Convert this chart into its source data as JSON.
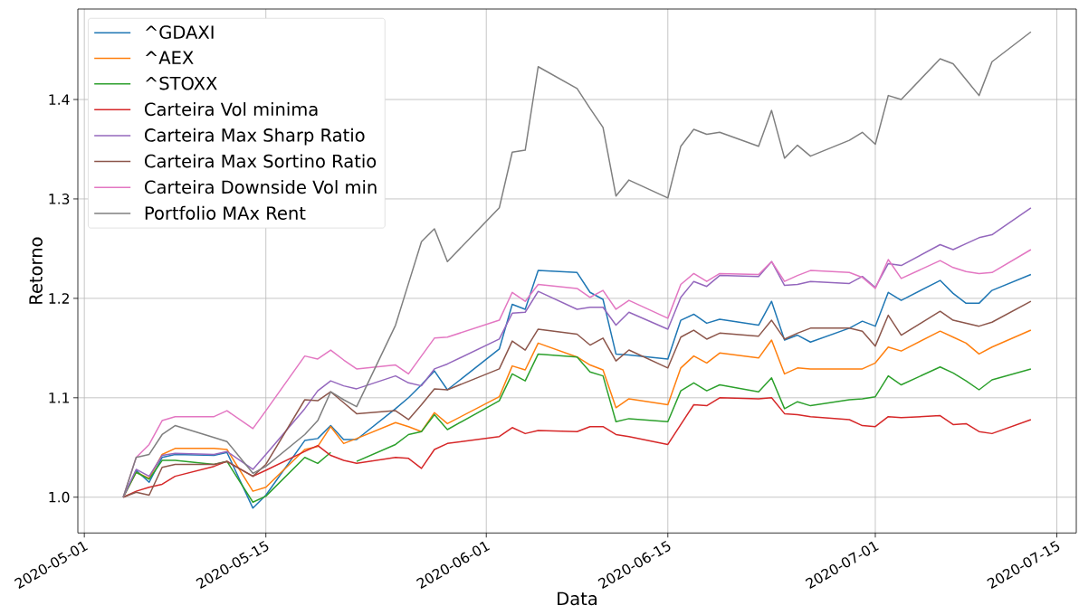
{
  "chart_data": {
    "type": "line",
    "xlabel": "Data",
    "ylabel": "Retorno",
    "x": [
      "2020-05-04",
      "2020-05-05",
      "2020-05-06",
      "2020-05-07",
      "2020-05-08",
      "2020-05-11",
      "2020-05-12",
      "2020-05-14",
      "2020-05-15",
      "2020-05-18",
      "2020-05-19",
      "2020-05-20",
      "2020-05-21",
      "2020-05-22",
      "2020-05-25",
      "2020-05-26",
      "2020-05-27",
      "2020-05-28",
      "2020-05-29",
      "2020-06-02",
      "2020-06-03",
      "2020-06-04",
      "2020-06-05",
      "2020-06-08",
      "2020-06-09",
      "2020-06-10",
      "2020-06-11",
      "2020-06-12",
      "2020-06-15",
      "2020-06-16",
      "2020-06-17",
      "2020-06-18",
      "2020-06-19",
      "2020-06-22",
      "2020-06-23",
      "2020-06-24",
      "2020-06-25",
      "2020-06-26",
      "2020-06-29",
      "2020-06-30",
      "2020-07-01",
      "2020-07-02",
      "2020-07-03",
      "2020-07-06",
      "2020-07-07",
      "2020-07-08",
      "2020-07-09",
      "2020-07-10",
      "2020-07-13"
    ],
    "series": [
      {
        "name": "^GDAXI",
        "color": "#1f77b4",
        "values": [
          1.0,
          1.027,
          1.015,
          1.04,
          1.043,
          1.042,
          1.045,
          0.989,
          1.002,
          1.057,
          1.059,
          1.072,
          1.058,
          1.058,
          1.089,
          1.1,
          1.113,
          1.127,
          1.108,
          1.149,
          1.194,
          1.189,
          1.228,
          1.226,
          1.206,
          1.199,
          1.144,
          1.143,
          1.139,
          1.178,
          1.184,
          1.175,
          1.179,
          1.173,
          1.197,
          1.158,
          1.163,
          1.156,
          1.17,
          1.177,
          1.172,
          1.206,
          1.198,
          1.218,
          1.205,
          1.195,
          1.195,
          1.208,
          1.224
        ]
      },
      {
        "name": "^AEX",
        "color": "#ff7f0e",
        "values": [
          1.0,
          1.025,
          1.019,
          1.043,
          1.049,
          1.049,
          1.048,
          1.006,
          1.01,
          1.048,
          1.051,
          1.071,
          1.054,
          1.059,
          1.075,
          1.071,
          1.066,
          1.085,
          1.074,
          1.101,
          1.132,
          1.128,
          1.155,
          1.141,
          1.133,
          1.128,
          1.09,
          1.099,
          1.093,
          1.13,
          1.142,
          1.135,
          1.145,
          1.14,
          1.158,
          1.124,
          1.13,
          1.129,
          1.129,
          1.129,
          1.135,
          1.151,
          1.147,
          1.167,
          1.161,
          1.155,
          1.144,
          1.151,
          1.168
        ]
      },
      {
        "name": "^STOXX",
        "color": "#2ca02c",
        "values": [
          1.0,
          1.025,
          1.018,
          1.037,
          1.037,
          1.033,
          1.036,
          0.995,
          1.001,
          1.04,
          1.034,
          1.045,
          null,
          1.036,
          1.053,
          1.063,
          1.066,
          1.083,
          1.068,
          1.097,
          1.124,
          1.117,
          1.144,
          1.141,
          1.126,
          1.122,
          1.076,
          1.079,
          1.076,
          1.107,
          1.115,
          1.107,
          1.113,
          1.106,
          1.12,
          1.089,
          1.096,
          1.092,
          1.098,
          1.099,
          1.101,
          1.122,
          1.113,
          1.131,
          1.125,
          1.117,
          1.108,
          1.118,
          1.129
        ]
      },
      {
        "name": "Carteira Vol minima",
        "color": "#d62728",
        "values": [
          1.0,
          1.006,
          1.01,
          1.013,
          1.021,
          1.031,
          1.036,
          1.021,
          1.027,
          1.046,
          1.052,
          1.042,
          1.037,
          1.034,
          1.04,
          1.039,
          1.029,
          1.048,
          1.054,
          1.061,
          1.07,
          1.064,
          1.067,
          1.066,
          1.071,
          1.071,
          1.063,
          1.061,
          1.053,
          1.073,
          1.093,
          1.092,
          1.1,
          1.099,
          1.1,
          1.084,
          1.083,
          1.081,
          1.078,
          1.072,
          1.071,
          1.081,
          1.08,
          1.082,
          1.073,
          1.074,
          1.066,
          1.064,
          1.078
        ]
      },
      {
        "name": "Carteira Max Sharp Ratio",
        "color": "#9467bd",
        "values": [
          1.0,
          1.028,
          1.021,
          1.042,
          1.044,
          1.043,
          1.046,
          1.028,
          1.043,
          1.089,
          1.107,
          1.117,
          1.112,
          1.109,
          1.122,
          1.115,
          1.112,
          1.129,
          1.134,
          1.159,
          1.185,
          1.186,
          1.207,
          1.189,
          1.191,
          1.191,
          1.173,
          1.186,
          1.169,
          1.201,
          1.217,
          1.212,
          1.223,
          1.222,
          1.237,
          1.213,
          1.214,
          1.217,
          1.215,
          1.222,
          1.211,
          1.235,
          1.233,
          1.254,
          1.249,
          1.255,
          1.261,
          1.264,
          1.291
        ]
      },
      {
        "name": "Carteira Max Sortino Ratio",
        "color": "#8c564b",
        "values": [
          1.0,
          1.005,
          1.002,
          1.03,
          1.033,
          1.033,
          1.036,
          1.021,
          1.033,
          1.098,
          1.097,
          1.106,
          1.095,
          1.084,
          1.087,
          1.078,
          1.093,
          1.109,
          1.108,
          1.129,
          1.157,
          1.148,
          1.169,
          1.164,
          1.153,
          1.16,
          1.137,
          1.148,
          1.13,
          1.161,
          1.168,
          1.159,
          1.165,
          1.162,
          1.178,
          1.159,
          1.165,
          1.17,
          1.17,
          1.167,
          1.152,
          1.183,
          1.163,
          1.187,
          1.178,
          1.175,
          1.172,
          1.176,
          1.197
        ]
      },
      {
        "name": "Carteira Downside Vol min",
        "color": "#e377c2",
        "values": [
          1.0,
          1.04,
          1.053,
          1.077,
          1.081,
          1.081,
          1.087,
          1.069,
          1.087,
          1.142,
          1.139,
          1.148,
          1.138,
          1.129,
          1.133,
          1.124,
          1.142,
          1.16,
          1.161,
          1.178,
          1.206,
          1.197,
          1.214,
          1.21,
          1.201,
          1.208,
          1.189,
          1.198,
          1.18,
          1.214,
          1.225,
          1.217,
          1.225,
          1.224,
          1.237,
          1.217,
          1.223,
          1.228,
          1.226,
          1.221,
          1.21,
          1.239,
          1.22,
          1.238,
          1.231,
          1.227,
          1.225,
          1.226,
          1.249
        ]
      },
      {
        "name": "Portfolio MAx Rent",
        "color": "#7f7f7f",
        "values": [
          1.0,
          1.04,
          1.043,
          1.063,
          1.072,
          1.06,
          1.056,
          1.024,
          1.031,
          1.063,
          1.077,
          1.106,
          1.098,
          1.091,
          1.173,
          1.215,
          1.257,
          1.27,
          1.237,
          1.291,
          1.347,
          1.349,
          1.433,
          1.411,
          1.391,
          1.372,
          1.303,
          1.319,
          1.301,
          1.353,
          1.37,
          1.365,
          1.367,
          1.353,
          1.389,
          1.341,
          1.354,
          1.343,
          1.359,
          1.367,
          1.355,
          1.404,
          1.4,
          1.441,
          1.436,
          1.42,
          1.404,
          1.438,
          1.468
        ]
      }
    ],
    "xlim": [
      "2020-04-30T12:00",
      "2020-07-16T12:00"
    ],
    "xticks": [
      "2020-05-01",
      "2020-05-15",
      "2020-06-01",
      "2020-06-15",
      "2020-07-01",
      "2020-07-15"
    ],
    "ylim": [
      0.964,
      1.491
    ],
    "yticks": [
      {
        "value": 1.0,
        "label": "1.0"
      },
      {
        "value": 1.1,
        "label": "1.1"
      },
      {
        "value": 1.2,
        "label": "1.2"
      },
      {
        "value": 1.3,
        "label": "1.3"
      },
      {
        "value": 1.4,
        "label": "1.4"
      }
    ],
    "grid": true,
    "legend": "top left"
  }
}
